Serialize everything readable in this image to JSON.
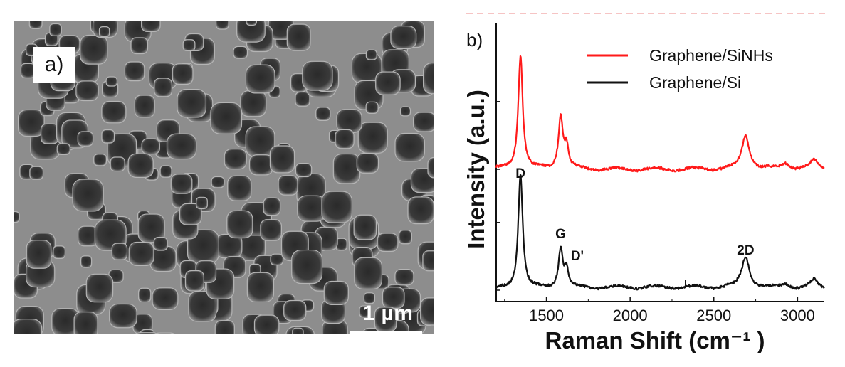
{
  "sem_image": {
    "panel_label": "a)",
    "scale_bar_label": "1 µm",
    "description_icon": "sem-porous-silicon-texture"
  },
  "chart_data": {
    "type": "line",
    "panel_label": "b)",
    "title": "",
    "xlabel": "Raman Shift (cm⁻¹ )",
    "ylabel": "Intensity (a.u.)",
    "xlim": [
      1200,
      3160
    ],
    "x_ticks": [
      1500,
      2000,
      2500,
      3000
    ],
    "x_tick_labels": [
      "1500",
      "2000",
      "2500",
      "3000"
    ],
    "y_ticks_unlabeled": true,
    "legend_position": "top-right",
    "series": [
      {
        "name": "Graphene/SiNHs",
        "color": "#ff1a1a",
        "baseline_offset": 1.0,
        "peaks": [
          {
            "center": 1345,
            "height": 0.95,
            "width": 16
          },
          {
            "center": 1585,
            "height": 0.44,
            "width": 16
          },
          {
            "center": 1620,
            "height": 0.18,
            "width": 14
          },
          {
            "center": 2690,
            "height": 0.28,
            "width": 28
          },
          {
            "center": 2930,
            "height": 0.05,
            "width": 30
          },
          {
            "center": 3100,
            "height": 0.07,
            "width": 30
          }
        ]
      },
      {
        "name": "Graphene/Si",
        "color": "#111111",
        "baseline_offset": 0.0,
        "peaks": [
          {
            "center": 1345,
            "height": 0.96,
            "width": 16
          },
          {
            "center": 1585,
            "height": 0.33,
            "width": 16
          },
          {
            "center": 1620,
            "height": 0.15,
            "width": 14
          },
          {
            "center": 2690,
            "height": 0.26,
            "width": 28
          },
          {
            "center": 2930,
            "height": 0.04,
            "width": 30
          },
          {
            "center": 3100,
            "height": 0.07,
            "width": 30
          }
        ]
      }
    ],
    "annotations": [
      {
        "text": "D",
        "x": 1345
      },
      {
        "text": "G",
        "x": 1585
      },
      {
        "text": "D'",
        "x": 1625
      },
      {
        "text": "2D",
        "x": 2690
      }
    ]
  }
}
